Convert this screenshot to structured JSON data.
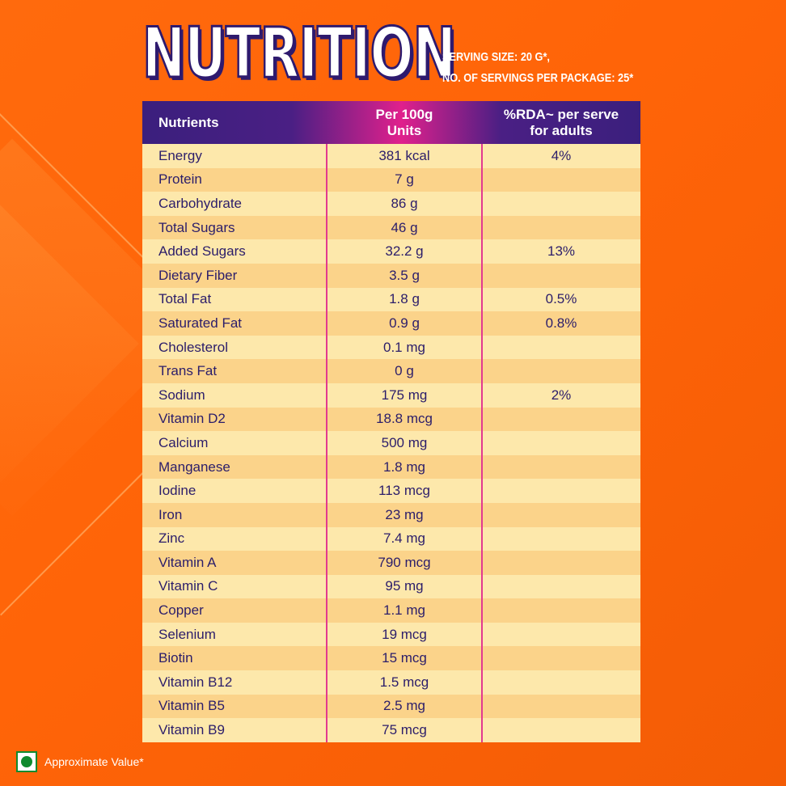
{
  "title": "NUTRITION",
  "serving_size": "SERVING SIZE: 20 G*,",
  "servings_per_package": "NO. OF SERVINGS PER PACKAGE: 25*",
  "table": {
    "headers": {
      "nutrients": "Nutrients",
      "per100g_line1": "Per 100g",
      "per100g_line2": "Units",
      "rda_line1": "%RDA~ per serve",
      "rda_line2": "for adults"
    },
    "rows": [
      {
        "nutrient": "Energy",
        "per100g": "381 kcal",
        "rda": "4%"
      },
      {
        "nutrient": "Protein",
        "per100g": "7 g",
        "rda": ""
      },
      {
        "nutrient": "Carbohydrate",
        "per100g": "86 g",
        "rda": ""
      },
      {
        "nutrient": "Total Sugars",
        "per100g": "46 g",
        "rda": ""
      },
      {
        "nutrient": "Added Sugars",
        "per100g": "32.2 g",
        "rda": "13%"
      },
      {
        "nutrient": "Dietary Fiber",
        "per100g": "3.5 g",
        "rda": ""
      },
      {
        "nutrient": "Total Fat",
        "per100g": "1.8 g",
        "rda": "0.5%"
      },
      {
        "nutrient": "Saturated Fat",
        "per100g": "0.9 g",
        "rda": "0.8%"
      },
      {
        "nutrient": "Cholesterol",
        "per100g": "0.1 mg",
        "rda": ""
      },
      {
        "nutrient": "Trans Fat",
        "per100g": "0 g",
        "rda": ""
      },
      {
        "nutrient": "Sodium",
        "per100g": "175 mg",
        "rda": "2%"
      },
      {
        "nutrient": "Vitamin D2",
        "per100g": "18.8 mcg",
        "rda": ""
      },
      {
        "nutrient": "Calcium",
        "per100g": "500 mg",
        "rda": ""
      },
      {
        "nutrient": "Manganese",
        "per100g": "1.8 mg",
        "rda": ""
      },
      {
        "nutrient": "Iodine",
        "per100g": "113 mcg",
        "rda": ""
      },
      {
        "nutrient": "Iron",
        "per100g": "23 mg",
        "rda": ""
      },
      {
        "nutrient": "Zinc",
        "per100g": "7.4 mg",
        "rda": ""
      },
      {
        "nutrient": "Vitamin A",
        "per100g": "790 mcg",
        "rda": ""
      },
      {
        "nutrient": "Vitamin C",
        "per100g": "95 mg",
        "rda": ""
      },
      {
        "nutrient": "Copper",
        "per100g": "1.1 mg",
        "rda": ""
      },
      {
        "nutrient": "Selenium",
        "per100g": "19 mcg",
        "rda": ""
      },
      {
        "nutrient": "Biotin",
        "per100g": "15 mcg",
        "rda": ""
      },
      {
        "nutrient": "Vitamin B12",
        "per100g": "1.5 mcg",
        "rda": ""
      },
      {
        "nutrient": "Vitamin B5",
        "per100g": "2.5 mg",
        "rda": ""
      },
      {
        "nutrient": "Vitamin B9",
        "per100g": "75 mcg",
        "rda": ""
      }
    ]
  },
  "footer": {
    "icon": "veg-mark-icon",
    "note": "Approximate Value*"
  },
  "colors": {
    "background": "#ff6a0d",
    "header_purple": "#3b1f7d",
    "header_pink": "#e0208c",
    "row_light": "#fde8ab",
    "row_dark": "#fbd38a",
    "text_navy": "#2b1d6a",
    "veg_green": "#0f8a2e"
  }
}
